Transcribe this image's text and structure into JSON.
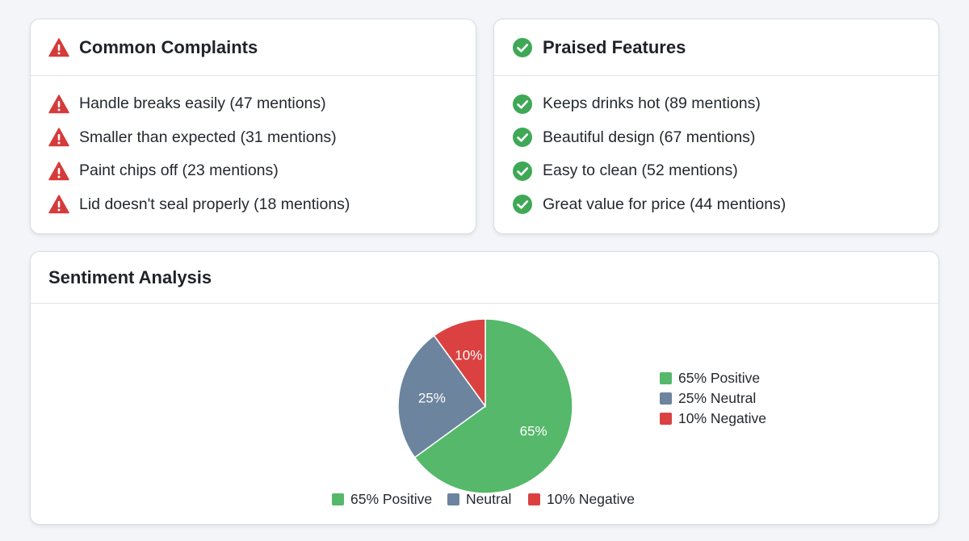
{
  "complaints": {
    "title": "Common Complaints",
    "icon": "warning-triangle-icon",
    "items": [
      {
        "label": "Handle breaks easily (47 mentions)"
      },
      {
        "label": "Smaller than expected (31 mentions)"
      },
      {
        "label": "Paint chips off (23 mentions)"
      },
      {
        "label": "Lid doesn't seal properly (18 mentions)"
      }
    ]
  },
  "praised": {
    "title": "Praised Features",
    "icon": "check-circle-icon",
    "items": [
      {
        "label": "Keeps drinks hot (89 mentions)"
      },
      {
        "label": "Beautiful design (67 mentions)"
      },
      {
        "label": "Easy to clean (52 mentions)"
      },
      {
        "label": "Great value for price (44 mentions)"
      }
    ]
  },
  "sentiment": {
    "title": "Sentiment Analysis"
  },
  "colors": {
    "positive": "#55b86a",
    "neutral": "#6c849e",
    "negative": "#db4141",
    "warning": "#d53b3b",
    "check": "#3fa856"
  },
  "chart_data": {
    "type": "pie",
    "title": "",
    "slices": [
      {
        "label": "Positive",
        "value": 65,
        "slice_label": "65%",
        "color": "#55b86a"
      },
      {
        "label": "Neutral",
        "value": 25,
        "slice_label": "25%",
        "color": "#6c849e"
      },
      {
        "label": "Negative",
        "value": 10,
        "slice_label": "10%",
        "color": "#db4141"
      }
    ],
    "legend_right": [
      "65% Positive",
      "25% Neutral",
      "10% Negative"
    ],
    "legend_bottom": [
      "65% Positive",
      "Neutral",
      "10% Negative"
    ]
  }
}
